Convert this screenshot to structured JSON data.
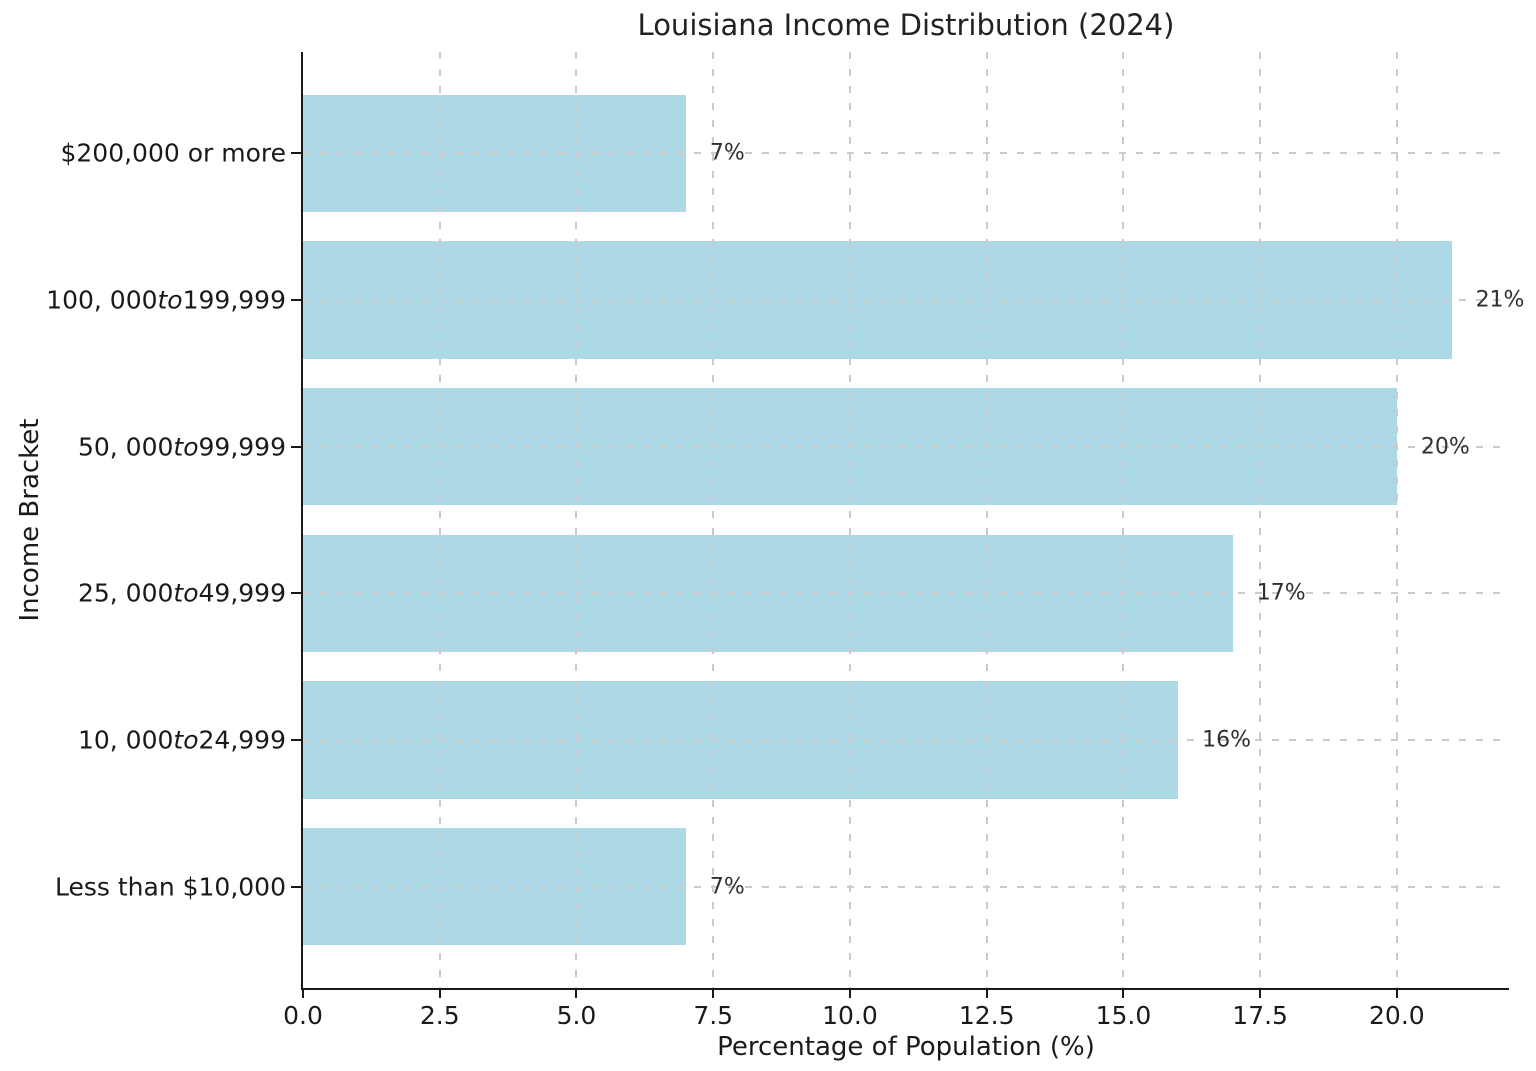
{
  "chart_data": {
    "type": "bar",
    "orientation": "horizontal",
    "title": "Louisiana Income Distribution (2024)",
    "xlabel": "Percentage of Population (%)",
    "ylabel": "Income Bracket",
    "xlim": [
      0,
      22.05
    ],
    "xticks": [
      "0.0",
      "2.5",
      "5.0",
      "7.5",
      "10.0",
      "12.5",
      "15.0",
      "17.5",
      "20.0"
    ],
    "grid": true,
    "grid_style": "dashed",
    "grid_color": "#cbcbcb",
    "bar_color": "#ADD8E6",
    "background_color": "#FFFFFF",
    "legend": false,
    "categories_order": "top-to-bottom",
    "categories": [
      "$200,000 or more",
      "100, 000to199,999",
      "50, 000to99,999",
      "25, 000to49,999",
      "10, 000to24,999",
      "Less than $10,000"
    ],
    "category_segments": [
      [
        {
          "text": "$200,000 or more",
          "italic": false
        }
      ],
      [
        {
          "text": "100, 000",
          "italic": false
        },
        {
          "text": "to",
          "italic": true
        },
        {
          "text": "199,999",
          "italic": false
        }
      ],
      [
        {
          "text": "50, 000",
          "italic": false
        },
        {
          "text": "to",
          "italic": true
        },
        {
          "text": "99,999",
          "italic": false
        }
      ],
      [
        {
          "text": "25, 000",
          "italic": false
        },
        {
          "text": "to",
          "italic": true
        },
        {
          "text": "49,999",
          "italic": false
        }
      ],
      [
        {
          "text": "10, 000",
          "italic": false
        },
        {
          "text": "to",
          "italic": true
        },
        {
          "text": "24,999",
          "italic": false
        }
      ],
      [
        {
          "text": "Less than $10,000",
          "italic": false
        }
      ]
    ],
    "values": [
      7,
      21,
      20,
      17,
      16,
      7
    ],
    "value_labels": [
      "7%",
      "21%",
      "20%",
      "17%",
      "16%",
      "7%"
    ]
  }
}
